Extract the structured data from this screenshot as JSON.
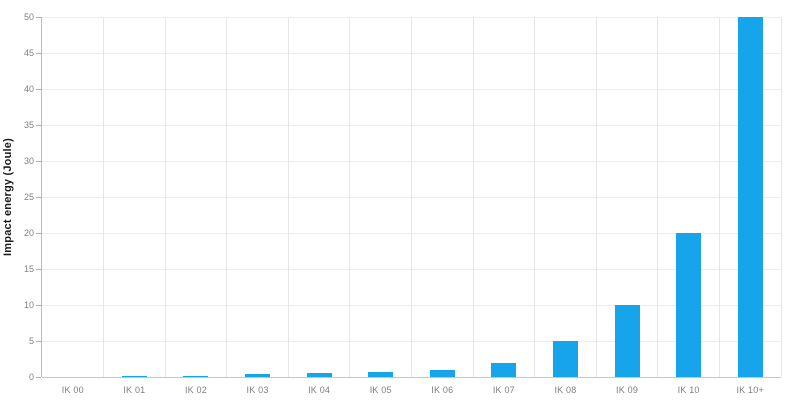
{
  "chart_data": {
    "type": "bar",
    "title": "",
    "xlabel": "",
    "ylabel": "Impact energy (Joule)",
    "categories": [
      "IK 00",
      "IK 01",
      "IK 02",
      "IK 03",
      "IK 04",
      "IK 05",
      "IK 06",
      "IK 07",
      "IK 08",
      "IK 09",
      "IK 10",
      "IK 10+"
    ],
    "values": [
      0,
      0.14,
      0.2,
      0.35,
      0.5,
      0.7,
      1,
      2,
      5,
      10,
      20,
      50
    ],
    "ylim": [
      0,
      50
    ],
    "yticks": [
      0,
      5,
      10,
      15,
      20,
      25,
      30,
      35,
      40,
      45,
      50
    ],
    "grid": true,
    "legend": "none",
    "bar_color": "#16a5ea",
    "gridline_color": "#ececec",
    "axis_color": "#b9b9b9",
    "tick_label_color": "#7f7f7f"
  }
}
